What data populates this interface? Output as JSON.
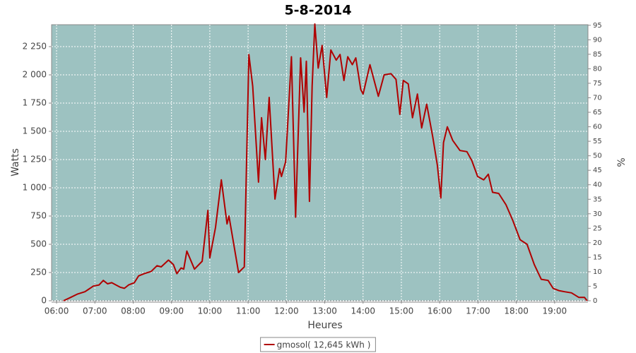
{
  "chart_data": {
    "type": "line",
    "title": "5-8-2014",
    "x_label": "Heures",
    "y_label": "Watts",
    "y2_label": "%",
    "xlim": [
      5.87,
      19.87
    ],
    "xticks": [
      {
        "value": 6,
        "label": "06:00"
      },
      {
        "value": 7,
        "label": "07:00"
      },
      {
        "value": 8,
        "label": "08:00"
      },
      {
        "value": 9,
        "label": "09:00"
      },
      {
        "value": 10,
        "label": "10:00"
      },
      {
        "value": 11,
        "label": "11:00"
      },
      {
        "value": 12,
        "label": "12:00"
      },
      {
        "value": 13,
        "label": "13:00"
      },
      {
        "value": 14,
        "label": "14:00"
      },
      {
        "value": 15,
        "label": "15:00"
      },
      {
        "value": 16,
        "label": "16:00"
      },
      {
        "value": 17,
        "label": "17:00"
      },
      {
        "value": 18,
        "label": "18:00"
      },
      {
        "value": 19,
        "label": "19:00"
      }
    ],
    "ylim": [
      0,
      2444
    ],
    "yticks": [
      0,
      250,
      500,
      750,
      {
        "value": 1000,
        "label": "1 000"
      },
      {
        "value": 1250,
        "label": "1 250"
      },
      {
        "value": 1500,
        "label": "1 500"
      },
      {
        "value": 1750,
        "label": "1 750"
      },
      {
        "value": 2000,
        "label": "2 000"
      },
      {
        "value": 2250,
        "label": "2 250"
      }
    ],
    "y2lim": [
      0,
      95.2
    ],
    "y2ticks": [
      0,
      5,
      10,
      15,
      20,
      25,
      30,
      35,
      40,
      45,
      50,
      55,
      60,
      65,
      70,
      75,
      80,
      85,
      90,
      95
    ],
    "grid": true,
    "background": "#9dc2c1",
    "legend": "bottom",
    "x": [
      6.18,
      6.37,
      6.55,
      6.74,
      6.83,
      6.96,
      7.11,
      7.22,
      7.33,
      7.44,
      7.55,
      7.66,
      7.77,
      7.88,
      8.03,
      8.14,
      8.29,
      8.47,
      8.62,
      8.73,
      8.92,
      9.05,
      9.14,
      9.25,
      9.32,
      9.4,
      9.6,
      9.8,
      9.95,
      10.0,
      10.15,
      10.3,
      10.45,
      10.5,
      10.75,
      10.9,
      11.02,
      11.12,
      11.27,
      11.35,
      11.45,
      11.55,
      11.7,
      11.82,
      11.87,
      11.98,
      12.13,
      12.24,
      12.37,
      12.46,
      12.52,
      12.6,
      12.67,
      12.74,
      12.83,
      12.93,
      13.05,
      13.16,
      13.3,
      13.4,
      13.5,
      13.6,
      13.72,
      13.81,
      13.94,
      14.0,
      14.18,
      14.4,
      14.55,
      14.73,
      14.86,
      14.96,
      15.05,
      15.18,
      15.29,
      15.42,
      15.53,
      15.66,
      15.82,
      15.94,
      16.03,
      16.1,
      16.2,
      16.34,
      16.53,
      16.71,
      16.84,
      16.99,
      17.15,
      17.27,
      17.38,
      17.54,
      17.73,
      17.91,
      18.1,
      18.28,
      18.47,
      18.65,
      18.83,
      18.96,
      19.11,
      19.26,
      19.44,
      19.63,
      19.78,
      19.85
    ],
    "series": [
      {
        "name": "gmosol( 12,645 kWh )",
        "color": "#b00000",
        "values": [
          0,
          30,
          60,
          80,
          100,
          130,
          140,
          180,
          150,
          160,
          140,
          120,
          110,
          140,
          160,
          220,
          240,
          260,
          310,
          300,
          360,
          320,
          240,
          290,
          280,
          440,
          280,
          350,
          800,
          380,
          650,
          1070,
          680,
          750,
          250,
          300,
          2180,
          1900,
          1050,
          1620,
          1250,
          1800,
          900,
          1170,
          1100,
          1230,
          2160,
          740,
          2150,
          1670,
          2120,
          880,
          1900,
          2450,
          2060,
          2260,
          1800,
          2220,
          2130,
          2180,
          1950,
          2160,
          2090,
          2150,
          1870,
          1830,
          2090,
          1810,
          2000,
          2010,
          1960,
          1650,
          1950,
          1920,
          1620,
          1830,
          1530,
          1740,
          1450,
          1200,
          910,
          1400,
          1540,
          1420,
          1330,
          1320,
          1240,
          1100,
          1070,
          1120,
          960,
          950,
          850,
          710,
          540,
          500,
          320,
          190,
          180,
          110,
          90,
          80,
          70,
          30,
          30,
          0
        ]
      }
    ]
  }
}
